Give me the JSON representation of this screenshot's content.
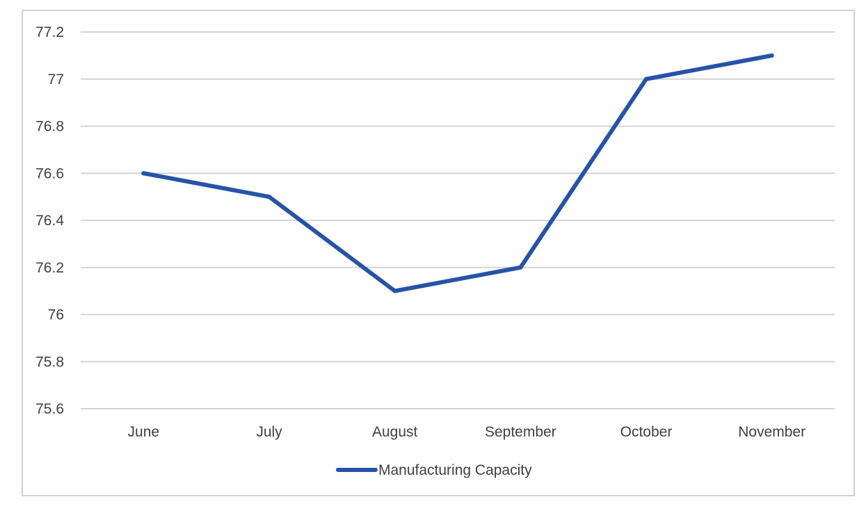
{
  "chart_data": {
    "type": "line",
    "categories": [
      "June",
      "July",
      "August",
      "September",
      "October",
      "November"
    ],
    "series": [
      {
        "name": "Manufacturing Capacity",
        "values": [
          76.6,
          76.5,
          76.1,
          76.2,
          77.0,
          77.1
        ],
        "color": "#2653a8"
      }
    ],
    "y_ticks": [
      "75.6",
      "75.8",
      "76",
      "76.2",
      "76.4",
      "76.6",
      "76.8",
      "77",
      "77.2"
    ],
    "ylim": [
      75.6,
      77.2
    ],
    "grid": true,
    "grid_color": "#d4d4d4",
    "legend_position": "bottom"
  }
}
